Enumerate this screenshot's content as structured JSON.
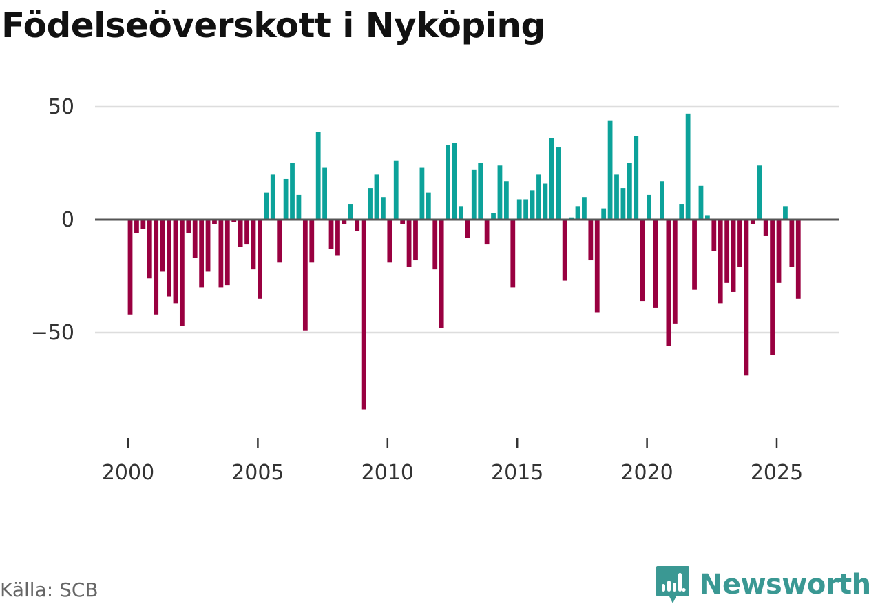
{
  "title": "Födelseöverskott i Nyköping",
  "source": "Källa: SCB",
  "brand": {
    "name": "Newsworthy",
    "icon": "newsworthy-logo-icon",
    "color": "#3a9893"
  },
  "colors": {
    "positive": "#0ca29a",
    "negative": "#990040",
    "grid": "#dddddd",
    "zero": "#555555"
  },
  "chart_data": {
    "type": "bar",
    "title": "Födelseöverskott i Nyköping",
    "xlabel": "",
    "ylabel": "",
    "ylim": [
      -95,
      60
    ],
    "xlim": [
      1997.5,
      2027.3
    ],
    "yticks": [
      50,
      0,
      -50
    ],
    "ytick_labels": [
      "50",
      "0",
      "−50"
    ],
    "xticks": [
      2000,
      2005,
      2010,
      2015,
      2020,
      2025
    ],
    "xtick_labels": [
      "2000",
      "2005",
      "2010",
      "2015",
      "2020",
      "2025"
    ],
    "grid": true,
    "frequency": "monthly",
    "start": 2000.08,
    "step": 0.25,
    "values": [
      -42,
      -6,
      -4,
      -26,
      -42,
      -23,
      -34,
      -37,
      -47,
      -6,
      -17,
      -30,
      -23,
      -2,
      -30,
      -29,
      -1,
      -12,
      -11,
      -22,
      -35,
      12,
      20,
      -19,
      18,
      25,
      11,
      -49,
      -19,
      39,
      23,
      -13,
      -16,
      -2,
      7,
      -5,
      -84,
      14,
      20,
      10,
      -19,
      26,
      -2,
      -21,
      -18,
      23,
      12,
      -22,
      -48,
      33,
      34,
      6,
      -8,
      22,
      25,
      -11,
      3,
      24,
      17,
      -30,
      9,
      9,
      13,
      20,
      16,
      36,
      32,
      -27,
      1,
      6,
      10,
      -18,
      -41,
      5,
      44,
      20,
      14,
      25,
      37,
      -36,
      11,
      -39,
      17,
      -56,
      -46,
      7,
      47,
      -31,
      15,
      2,
      -14,
      -37,
      -28,
      -32,
      -21,
      -69,
      -2,
      24,
      -7,
      -60,
      -28,
      6,
      -21,
      -35
    ]
  }
}
